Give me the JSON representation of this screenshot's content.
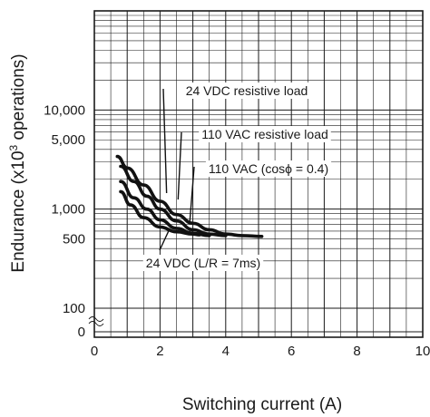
{
  "chart_data": {
    "type": "line",
    "xlabel": "Switching current (A)",
    "ylabel": "Endurance (x10³ operations)",
    "ylabel_prefix": "Endurance (x10",
    "ylabel_sup": "3",
    "ylabel_suffix": " operations)",
    "xlim": [
      0,
      10
    ],
    "ylim": [
      100,
      100000
    ],
    "y_scale": "log",
    "y_axis_break_below": 100,
    "grid": true,
    "x_ticks": [
      {
        "value": 0,
        "label": "0"
      },
      {
        "value": 2,
        "label": "2"
      },
      {
        "value": 4,
        "label": "4"
      },
      {
        "value": 6,
        "label": "6"
      },
      {
        "value": 8,
        "label": "8"
      },
      {
        "value": 10,
        "label": "10"
      }
    ],
    "y_ticks": [
      {
        "value": 10000,
        "label": "10,000"
      },
      {
        "value": 5000,
        "label": "5,000"
      },
      {
        "value": 1000,
        "label": "1,000"
      },
      {
        "value": 500,
        "label": "500"
      },
      {
        "value": 100,
        "label": "100"
      }
    ],
    "y_zero_label": "0",
    "series": [
      {
        "name": "24 VDC resistive load",
        "x": [
          0.7,
          1.0,
          1.5,
          2.0,
          2.5,
          3.0,
          3.5,
          4.0,
          4.5,
          5.1
        ],
        "y": [
          3400,
          2600,
          1750,
          1200,
          880,
          720,
          620,
          560,
          540,
          530
        ]
      },
      {
        "name": "110 VAC resistive load",
        "x": [
          0.8,
          1.2,
          1.6,
          2.0,
          2.5,
          3.0,
          3.5,
          4.0
        ],
        "y": [
          2700,
          1900,
          1350,
          1000,
          760,
          620,
          560,
          540
        ]
      },
      {
        "name": "110 VAC (cosϕ = 0.4)",
        "x": [
          0.8,
          1.2,
          1.6,
          2.0,
          2.5,
          3.0,
          3.5
        ],
        "y": [
          1900,
          1300,
          1000,
          780,
          640,
          570,
          540
        ]
      },
      {
        "name": "24 VDC (L/R = 7ms)",
        "x": [
          0.8,
          1.1,
          1.5,
          2.0,
          2.5,
          3.0,
          3.2
        ],
        "y": [
          1500,
          1100,
          820,
          660,
          590,
          560,
          550
        ]
      }
    ],
    "annotations": [
      {
        "text": "24 VDC resistive load",
        "series": "24 VDC resistive load",
        "anchor_x": 2.2,
        "anchor_y": 1450
      },
      {
        "text": "110 VAC resistive load",
        "series": "110 VAC resistive load",
        "anchor_x": 2.55,
        "anchor_y": 1250
      },
      {
        "text": "110 VAC (cosϕ = 0.4)",
        "series": "110 VAC (cosϕ = 0.4)",
        "anchor_x": 2.9,
        "anchor_y": 700
      },
      {
        "text": "24 VDC (L/R = 7ms)",
        "series": "24 VDC (L/R = 7ms)",
        "anchor_x": 2.3,
        "anchor_y": 640
      }
    ]
  }
}
